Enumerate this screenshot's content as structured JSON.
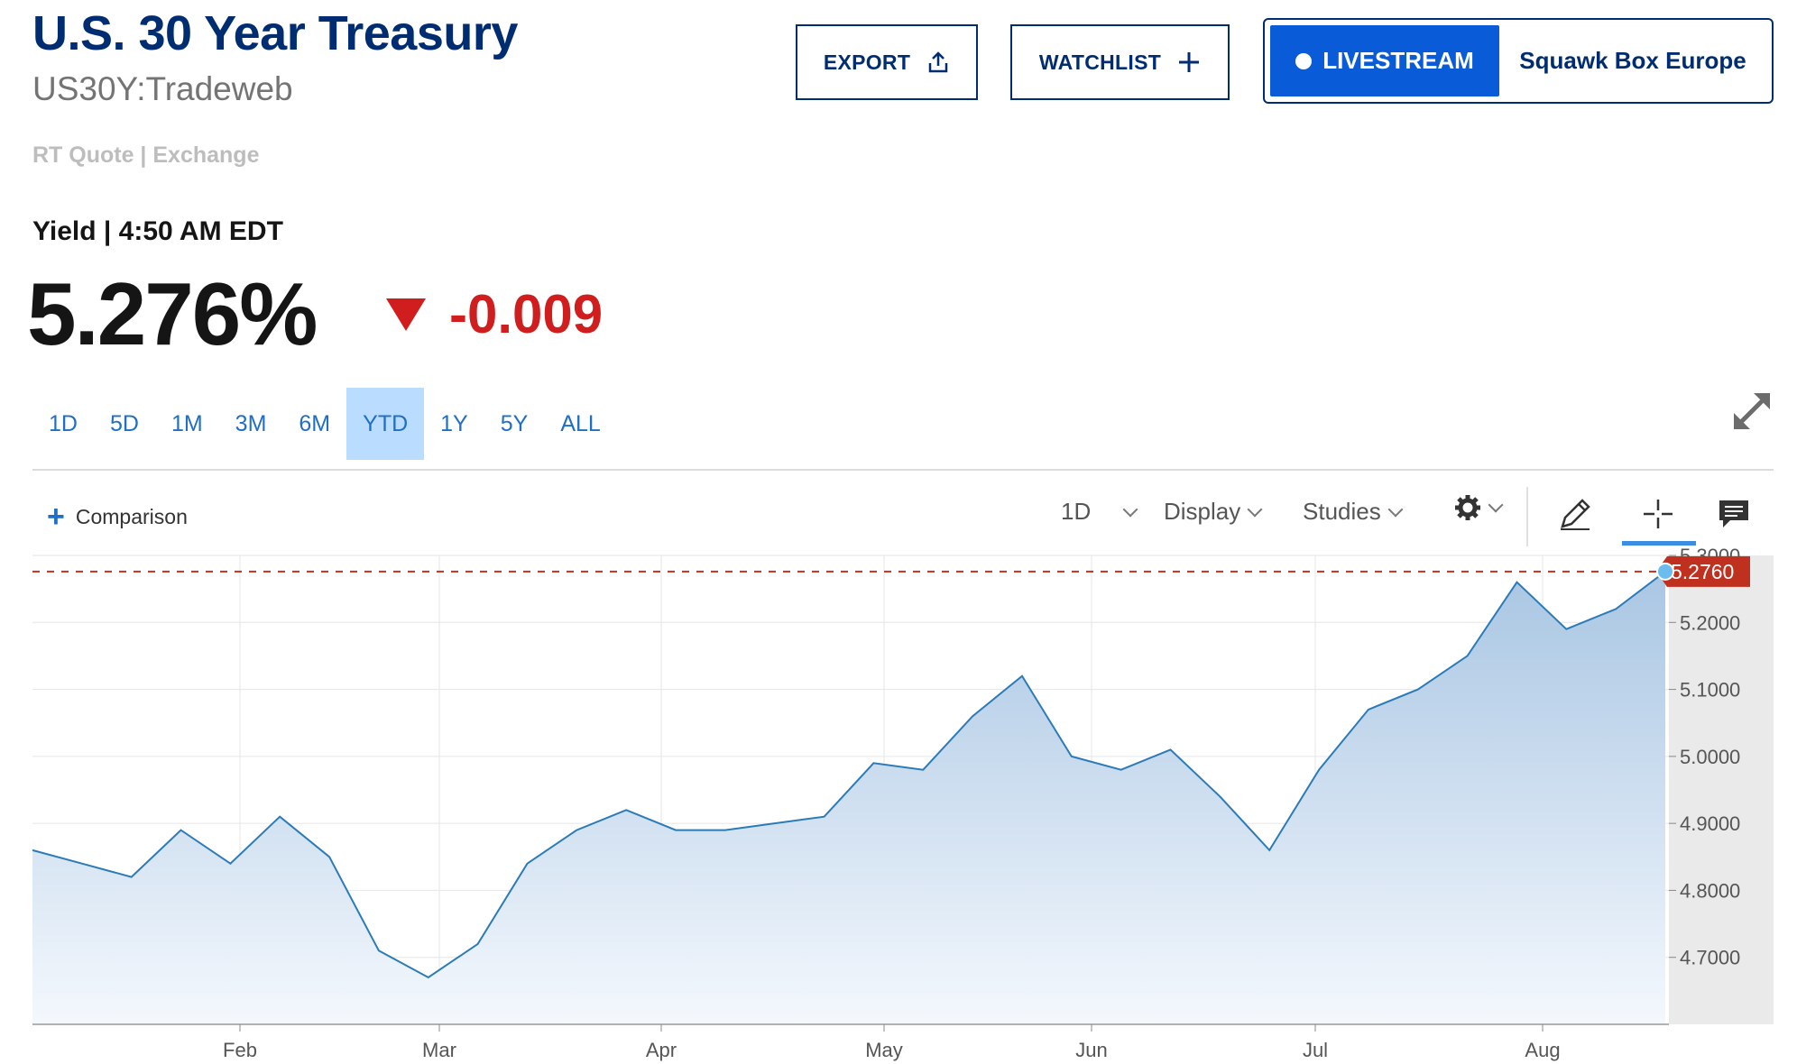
{
  "header": {
    "title": "U.S. 30 Year Treasury",
    "symbol": "US30Y:Tradeweb",
    "quote_source": "RT Quote | Exchange",
    "yield_label": "Yield | 4:50 AM EDT",
    "price": "5.276%",
    "change": "-0.009",
    "change_color": "#d01e1e"
  },
  "actions": {
    "export_label": "EXPORT",
    "watchlist_label": "WATCHLIST",
    "livestream_label": "LIVESTREAM",
    "livestream_show": "Squawk Box Europe"
  },
  "ranges": {
    "items": [
      "1D",
      "5D",
      "1M",
      "3M",
      "6M",
      "YTD",
      "1Y",
      "5Y",
      "ALL"
    ],
    "active": "YTD"
  },
  "toolbar": {
    "comparison_label": "Comparison",
    "interval_label": "1D",
    "display_label": "Display",
    "studies_label": "Studies"
  },
  "chart_data": {
    "type": "area",
    "title": "",
    "xlabel": "",
    "ylabel": "",
    "x_ticks": [
      "Feb",
      "Mar",
      "Apr",
      "May",
      "Jun",
      "Jul",
      "Aug"
    ],
    "y_ticks": [
      "4.7000",
      "4.8000",
      "4.9000",
      "5.0000",
      "5.1000",
      "5.2000",
      "5.3000"
    ],
    "ylim": [
      4.6,
      5.3
    ],
    "current_value": 5.276,
    "current_label": "5.2760",
    "line_color": "#2b7bb9",
    "marker_color": "#c0301e",
    "x": [
      "Jan 3",
      "Jan 10",
      "Jan 17",
      "Jan 24",
      "Jan 31",
      "Feb 7",
      "Feb 14",
      "Feb 21",
      "Feb 28",
      "Mar 6",
      "Mar 13",
      "Mar 20",
      "Mar 27",
      "Apr 3",
      "Apr 10",
      "Apr 17",
      "Apr 24",
      "May 1",
      "May 8",
      "May 15",
      "May 22",
      "May 29",
      "Jun 5",
      "Jun 12",
      "Jun 19",
      "Jun 26",
      "Jul 3",
      "Jul 10",
      "Jul 17",
      "Jul 24",
      "Jul 31",
      "Aug 7",
      "Aug 14",
      "Aug 17"
    ],
    "values": [
      4.86,
      4.84,
      4.82,
      4.89,
      4.84,
      4.91,
      4.85,
      4.71,
      4.67,
      4.72,
      4.84,
      4.89,
      4.92,
      4.89,
      4.89,
      4.9,
      4.91,
      4.99,
      4.98,
      5.06,
      5.12,
      5.0,
      4.98,
      5.01,
      4.94,
      4.86,
      4.98,
      5.07,
      5.1,
      5.15,
      5.26,
      5.19,
      5.22,
      5.276
    ]
  }
}
